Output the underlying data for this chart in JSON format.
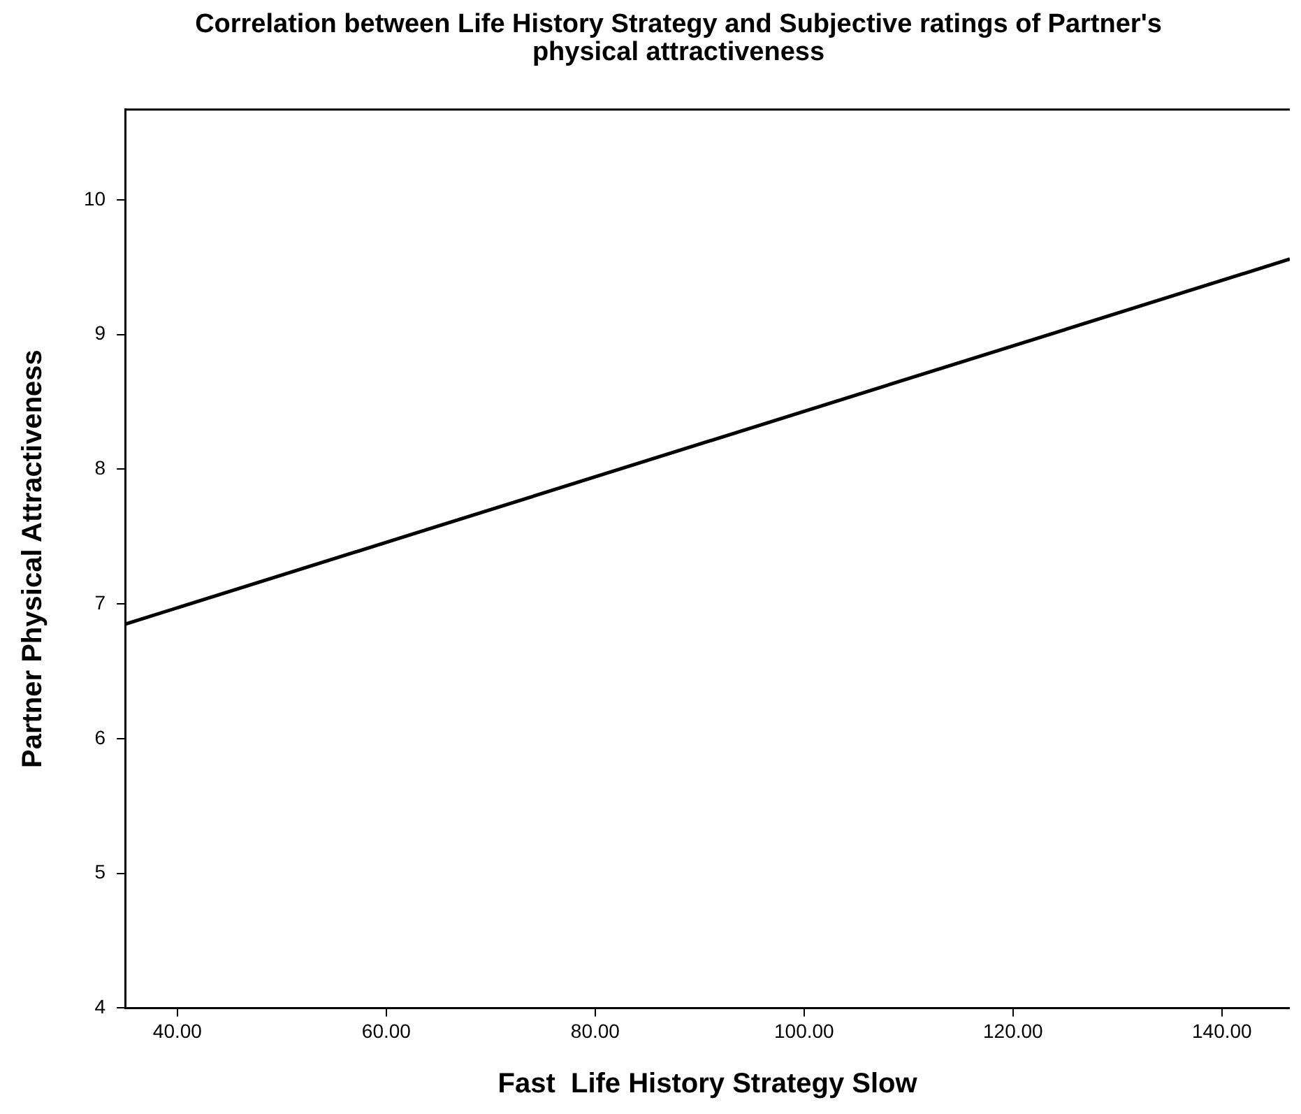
{
  "chart_data": {
    "type": "line",
    "title": "Correlation between Life History Strategy and Subjective ratings of Partner's physical attractiveness",
    "xlabel": "Fast  Life History Strategy Slow",
    "ylabel": "Partner Physical Attractiveness",
    "x": [
      35,
      146.5
    ],
    "series": [
      {
        "color": "#000000",
        "values": [
          6.85,
          9.56
        ]
      }
    ],
    "xlim": [
      35,
      146.5
    ],
    "xticks": [
      {
        "value": 40,
        "label": "40.00"
      },
      {
        "value": 60,
        "label": "60.00"
      },
      {
        "value": 80,
        "label": "80.00"
      },
      {
        "value": 100,
        "label": "100.00"
      },
      {
        "value": 120,
        "label": "120.00"
      },
      {
        "value": 140,
        "label": "140.00"
      }
    ],
    "ylim": [
      4,
      10.67
    ],
    "yticks": [
      4,
      5,
      6,
      7,
      8,
      9,
      10
    ],
    "grid": false,
    "legend": false,
    "marker": "none",
    "line_style": "solid"
  }
}
